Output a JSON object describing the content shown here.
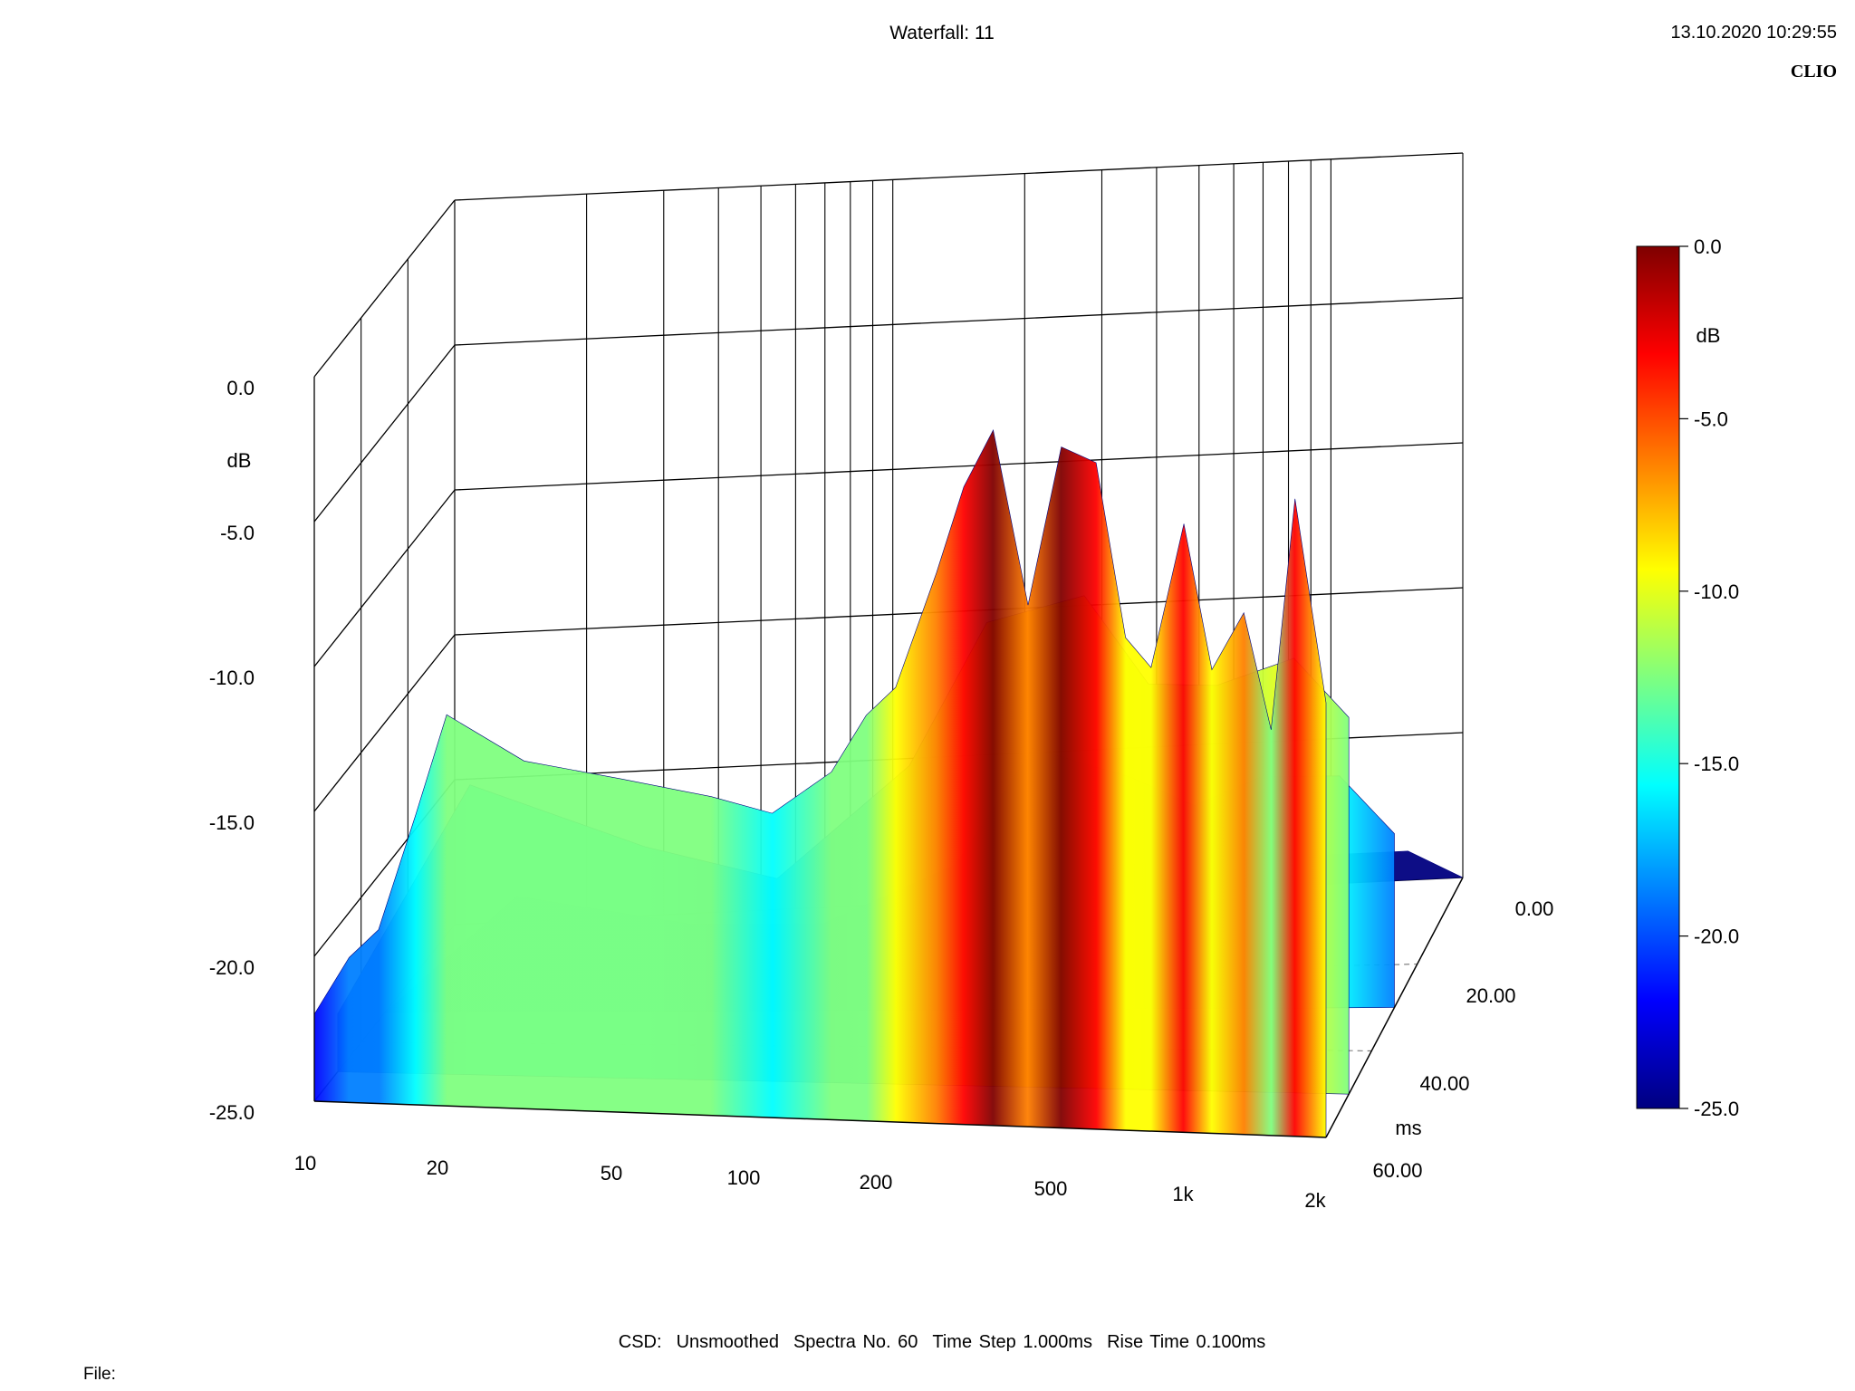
{
  "header": {
    "title": "Waterfall: 11",
    "datetime": "13.10.2020 10:29:55",
    "brand": "CLIO"
  },
  "footer": {
    "csd_label": "CSD:",
    "smoothing": "Unsmoothed",
    "spectra": "Spectra No. 60",
    "time_step": "Time Step 1.000ms",
    "rise_time": "Rise Time 0.100ms",
    "file_label": "File:"
  },
  "colors": {
    "scale": [
      "#00007f",
      "#0000ff",
      "#007fff",
      "#00ffff",
      "#7fff7f",
      "#ffff00",
      "#ff7f00",
      "#ff0000",
      "#7f0000"
    ],
    "grid": "#000000"
  },
  "chart_data": {
    "type": "waterfall",
    "title": "Waterfall: 11",
    "x_axis": {
      "scale": "log",
      "range": [
        10,
        2000
      ],
      "tick_values": [
        10,
        20,
        50,
        100,
        200,
        500,
        1000,
        2000
      ],
      "tick_labels": [
        "10",
        "20",
        "50",
        "100",
        "200",
        "500",
        "1k",
        "2k"
      ]
    },
    "y_axis": {
      "label": "dB",
      "range": [
        -25,
        0
      ],
      "tick_labels": [
        "0.0",
        "-5.0",
        "-10.0",
        "-15.0",
        "-20.0",
        "-25.0"
      ]
    },
    "z_axis": {
      "label": "ms",
      "range": [
        0,
        60
      ],
      "tick_labels": [
        "0.00",
        "20.00",
        "40.00",
        "60.00"
      ]
    },
    "colorbar": {
      "label": "dB",
      "range": [
        -25,
        0
      ],
      "tick_labels": [
        "0.0",
        "-5.0",
        "-10.0",
        "-15.0",
        "-20.0",
        "-25.0"
      ]
    },
    "series": [
      {
        "time_ms": 0,
        "freq": [
          10,
          12,
          14,
          17,
          20,
          30,
          50,
          80,
          110,
          150,
          180,
          210,
          260,
          300,
          350,
          420,
          500,
          600,
          700,
          800,
          950,
          1100,
          1300,
          1500,
          1700,
          2000
        ],
        "db": [
          -22,
          -20,
          -19,
          -15,
          -11.5,
          -13,
          -13.5,
          -14,
          -14.5,
          -13,
          -11,
          -10,
          -6,
          -3,
          -1,
          -7,
          -1.5,
          -2,
          -8,
          -9,
          -4,
          -9,
          -7,
          -11,
          -3,
          -10
        ]
      },
      {
        "time_ms": 10,
        "freq": [
          10,
          20,
          50,
          100,
          200,
          300,
          500,
          700,
          1000,
          1500,
          2000
        ],
        "db": [
          -23,
          -15,
          -17,
          -18,
          -14,
          -9,
          -8,
          -11,
          -11,
          -10,
          -12
        ]
      },
      {
        "time_ms": 30,
        "freq": [
          10,
          20,
          50,
          100,
          200,
          300,
          500,
          700,
          1000,
          1500,
          2000
        ],
        "db": [
          -25,
          -21,
          -22,
          -22,
          -20,
          -16,
          -17,
          -18,
          -17,
          -17,
          -19
        ]
      },
      {
        "time_ms": 60,
        "freq": [
          10,
          20,
          50,
          100,
          200,
          300,
          500,
          700,
          1000,
          1500,
          2000
        ],
        "db": [
          -25,
          -25,
          -25,
          -25,
          -25,
          -24,
          -24,
          -24,
          -24,
          -24,
          -25
        ]
      }
    ]
  }
}
